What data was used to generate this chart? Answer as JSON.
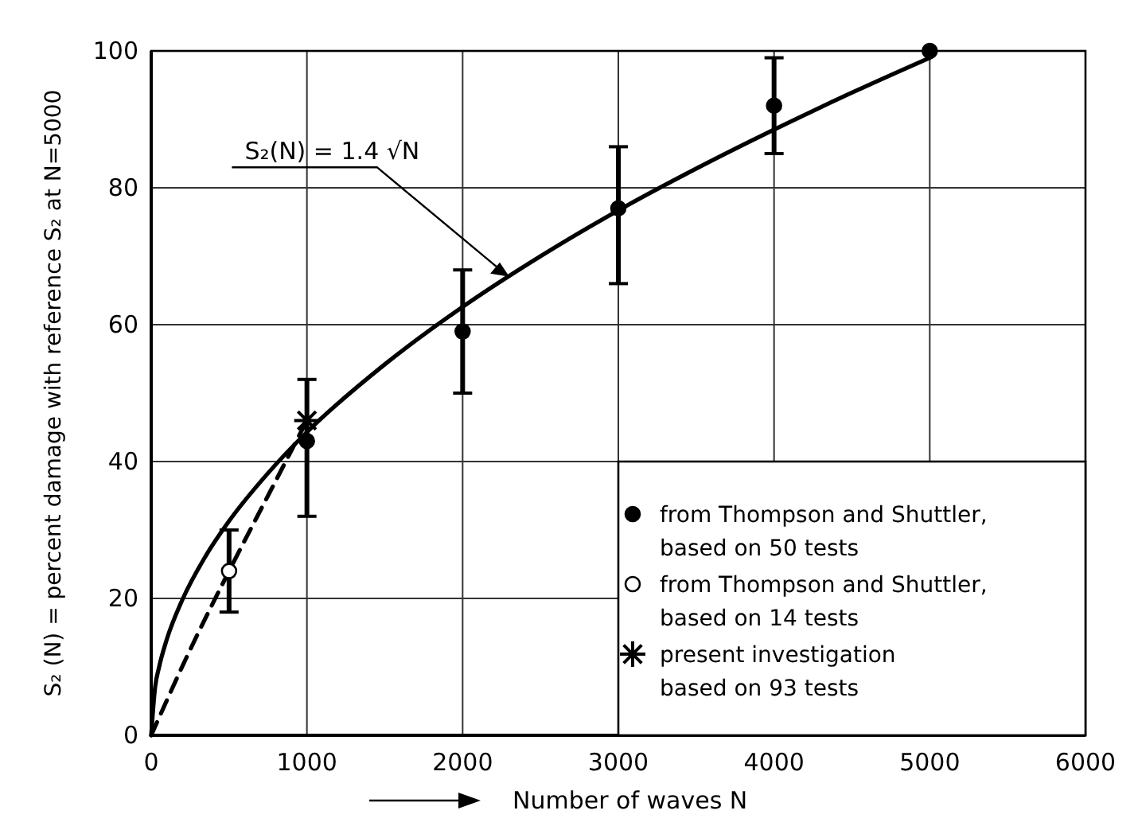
{
  "chart_data": {
    "type": "scatter",
    "xlabel": "Number of waves N",
    "ylabel": "S₂ (N) = percent damage with reference S₂ at N=5000",
    "xlim": [
      0,
      6000
    ],
    "xticks": [
      0,
      1000,
      2000,
      3000,
      4000,
      5000,
      6000
    ],
    "ylim": [
      0,
      100
    ],
    "yticks": [
      0,
      20,
      40,
      60,
      80,
      100
    ],
    "grid": true,
    "legend": "bottom right",
    "annotations": [
      {
        "text": "S₂(N) = 1.4 √N",
        "x": 2300,
        "y": 67
      }
    ],
    "series": [
      {
        "type": "line",
        "color": "#000000",
        "line_style": "solid",
        "marker": "none",
        "x": [
          0,
          25,
          50,
          100,
          200,
          350,
          500,
          750,
          1000,
          1500,
          2000,
          2500,
          3000,
          3500,
          4000,
          4500,
          5000
        ],
        "values": [
          0,
          7,
          9.9,
          14,
          19.8,
          26.2,
          31.3,
          38.3,
          44.3,
          54.2,
          62.6,
          70,
          76.7,
          82.8,
          88.5,
          93.9,
          99
        ]
      },
      {
        "type": "line",
        "color": "#000000",
        "line_style": "dashed",
        "marker": "none",
        "x": [
          0,
          250,
          500,
          750,
          1000
        ],
        "values": [
          0,
          12.5,
          24,
          35,
          46
        ]
      },
      {
        "name": "from Thompson and Shuttler,\nbased on 50 tests",
        "color": "#000000",
        "marker": "circle",
        "x": [
          1000,
          2000,
          3000,
          4000,
          5000
        ],
        "values": [
          43,
          59,
          77,
          92,
          100
        ],
        "errors": [
          [
            32,
            52
          ],
          [
            50,
            68
          ],
          [
            66,
            86
          ],
          [
            85,
            99
          ],
          null
        ]
      },
      {
        "name": "from Thompson and Shuttler,\nbased on 14 tests",
        "color": "#ffffff",
        "marker": "circle",
        "x": [
          500
        ],
        "values": [
          24
        ],
        "errors": [
          [
            18,
            30
          ]
        ]
      },
      {
        "name": "present investigation\nbased on 93 tests",
        "color": "#000000",
        "marker": "cross",
        "x": [
          1000
        ],
        "values": [
          46
        ]
      }
    ]
  }
}
